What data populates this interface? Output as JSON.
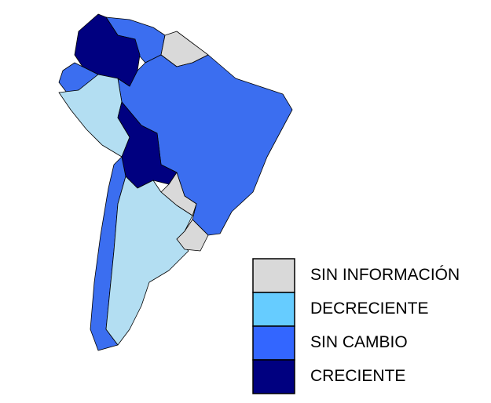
{
  "legend": [
    {
      "label": "SIN INFORMACIÓN",
      "color": "#d9d9d9"
    },
    {
      "label": "DECRECIENTE",
      "color": "#66ccff"
    },
    {
      "label": "SIN CAMBIO",
      "color": "#3366ff"
    },
    {
      "label": "CRECIENTE",
      "color": "#000080"
    }
  ]
}
